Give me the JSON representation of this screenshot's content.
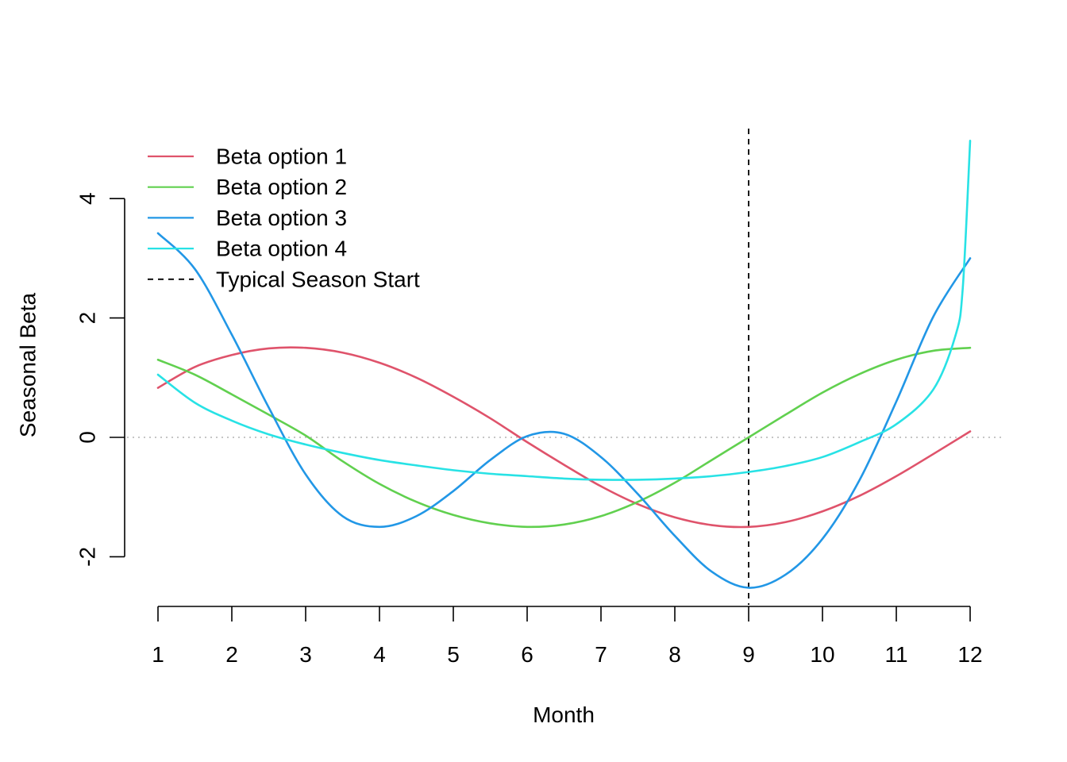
{
  "chart_data": {
    "type": "line",
    "title": "",
    "xlabel": "Month",
    "ylabel": "Seasonal Beta",
    "xlim": [
      1,
      12
    ],
    "ylim": [
      -2.5,
      5
    ],
    "x_ticks": [
      1,
      2,
      3,
      4,
      5,
      6,
      7,
      8,
      9,
      10,
      11,
      12
    ],
    "x_tick_labels": [
      "1",
      "2",
      "3",
      "4",
      "5",
      "6",
      "7",
      "8",
      "9",
      "10",
      "11",
      "12"
    ],
    "y_ticks": [
      -2,
      0,
      2,
      4
    ],
    "y_tick_labels": [
      "-2",
      "0",
      "2",
      "4"
    ],
    "grid": false,
    "legend_position": "top-left",
    "reference_lines": [
      {
        "type": "horizontal",
        "y": 0,
        "style": "dotted",
        "color": "#bebebe"
      },
      {
        "type": "vertical",
        "x": 9,
        "style": "dashed",
        "color": "#000000",
        "label": "Typical Season Start"
      }
    ],
    "series": [
      {
        "name": "Beta option 1",
        "color": "#df536b",
        "x": [
          1,
          1.5,
          2,
          2.5,
          3,
          3.5,
          4,
          4.5,
          5,
          5.5,
          6,
          6.5,
          7,
          7.5,
          8,
          8.5,
          9,
          9.5,
          10,
          10.5,
          11,
          11.5,
          12
        ],
        "y": [
          0.83,
          1.18,
          1.38,
          1.49,
          1.5,
          1.42,
          1.25,
          1.0,
          0.68,
          0.32,
          -0.08,
          -0.46,
          -0.82,
          -1.12,
          -1.34,
          -1.47,
          -1.5,
          -1.42,
          -1.24,
          -0.98,
          -0.65,
          -0.28,
          0.1
        ]
      },
      {
        "name": "Beta option 2",
        "color": "#61d04f",
        "x": [
          1,
          1.5,
          2,
          2.5,
          3,
          3.5,
          4,
          4.5,
          5,
          5.5,
          6,
          6.5,
          7,
          7.5,
          8,
          8.5,
          9,
          9.5,
          10,
          10.5,
          11,
          11.5,
          12
        ],
        "y": [
          1.3,
          1.05,
          0.72,
          0.38,
          0.03,
          -0.4,
          -0.78,
          -1.08,
          -1.3,
          -1.44,
          -1.5,
          -1.46,
          -1.32,
          -1.08,
          -0.76,
          -0.38,
          0.0,
          0.38,
          0.75,
          1.06,
          1.3,
          1.45,
          1.5
        ]
      },
      {
        "name": "Beta option 3",
        "color": "#2297e6",
        "x": [
          1,
          1.5,
          2,
          2.5,
          3,
          3.5,
          4,
          4.5,
          5,
          5.5,
          6,
          6.5,
          7,
          7.5,
          8,
          8.5,
          9,
          9.5,
          10,
          10.5,
          11,
          11.5,
          12
        ],
        "y": [
          3.42,
          2.82,
          1.72,
          0.5,
          -0.62,
          -1.32,
          -1.5,
          -1.32,
          -0.9,
          -0.38,
          0.02,
          0.06,
          -0.33,
          -0.95,
          -1.65,
          -2.25,
          -2.52,
          -2.3,
          -1.7,
          -0.72,
          0.6,
          2.02,
          3.0
        ]
      },
      {
        "name": "Beta option 4",
        "color": "#28e2e5",
        "x": [
          1,
          1.5,
          2,
          2.5,
          3,
          3.5,
          4,
          4.5,
          5,
          5.5,
          6,
          6.5,
          7,
          7.5,
          8,
          8.5,
          9,
          9.5,
          10,
          10.5,
          11,
          11.5,
          11.8,
          11.9,
          12
        ],
        "y": [
          1.05,
          0.58,
          0.28,
          0.05,
          -0.12,
          -0.26,
          -0.38,
          -0.47,
          -0.55,
          -0.61,
          -0.65,
          -0.69,
          -0.71,
          -0.71,
          -0.69,
          -0.65,
          -0.58,
          -0.48,
          -0.33,
          -0.08,
          0.22,
          0.8,
          1.7,
          2.5,
          4.97
        ]
      },
      {
        "name": "Typical Season Start",
        "color": "#000000",
        "style": "dashed"
      }
    ]
  }
}
